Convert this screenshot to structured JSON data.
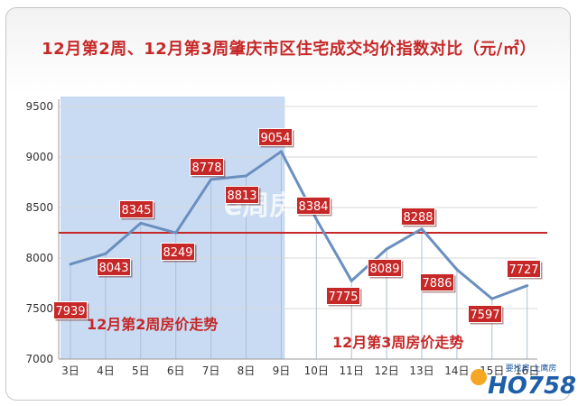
{
  "chart_data": {
    "type": "line",
    "title": "12月第2周、12月第3周肇庆市区住宅成交均价指数对比（元/㎡）",
    "categories": [
      "3日",
      "4日",
      "5日",
      "6日",
      "7日",
      "8日",
      "9日",
      "10日",
      "11日",
      "12日",
      "13日",
      "14日",
      "15日",
      "16日"
    ],
    "series": [
      {
        "values": [
          7939,
          8043,
          8345,
          8249,
          8778,
          8813,
          9054,
          8384,
          7775,
          8089,
          8288,
          7886,
          7597,
          7727
        ]
      }
    ],
    "data_labels": [
      "7939",
      "8043",
      "8345",
      "8249",
      "8778",
      "8813",
      "9054",
      "8384",
      "7775",
      "8089",
      "8288",
      "7886",
      "7597",
      "7727"
    ],
    "ylim": [
      7000,
      9500
    ],
    "yticks": [
      7000,
      7500,
      8000,
      8500,
      9000,
      9500
    ],
    "reference_line": 8250,
    "annotations": {
      "week2": "12月第2周房价走势",
      "week3": "12月第3周房价走势"
    },
    "colors": {
      "line": "#6a8fbf",
      "label_fill": "#c62828",
      "reference": "#c62828",
      "week2_band": "#c5d9f1",
      "annotation_text": "#c62828"
    },
    "grid": true,
    "legend": "none"
  },
  "watermark": "e周房宝",
  "logo": {
    "text": "HO758",
    "tagline": "要找房 上鹰房"
  }
}
